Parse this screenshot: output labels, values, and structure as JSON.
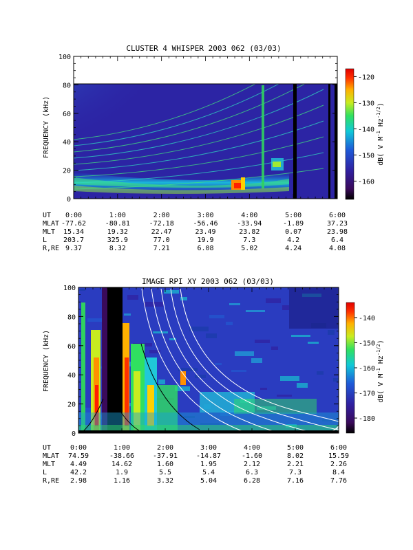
{
  "chart_data": [
    {
      "type": "heatmap",
      "title": "CLUSTER 4 WHISPER 2003 062 (03/03)",
      "ylabel": "FREQUENCY (kHz)",
      "ylim": [
        0,
        100
      ],
      "yticks": [
        "0",
        "20",
        "40",
        "60",
        "80",
        "100"
      ],
      "xlim": [
        "0:00",
        "6:00"
      ],
      "data_ymax": 80,
      "colorbar": {
        "label": "dB( V M",
        "label_sup1": "-1",
        "label_mid": " Hz",
        "label_sup2": "-1/2",
        "label_end": ")",
        "range": [
          -167,
          -117
        ],
        "ticks": [
          "-120",
          "-130",
          "-140",
          "-150",
          "-160"
        ]
      },
      "ephemeris": {
        "rows": [
          {
            "label": "UT",
            "values": [
              "0:00",
              "1:00",
              "2:00",
              "3:00",
              "4:00",
              "5:00",
              "6:00"
            ]
          },
          {
            "label": "MLAT",
            "values": [
              "-77.62",
              "-80.81",
              "-72.18",
              "-56.46",
              "-33.94",
              "-1.89",
              "37.23"
            ]
          },
          {
            "label": "MLT",
            "values": [
              "15.34",
              "19.32",
              "22.47",
              "23.49",
              "23.82",
              "0.07",
              "23.98"
            ]
          },
          {
            "label": "L",
            "values": [
              "203.7",
              "325.9",
              "77.0",
              "19.9",
              "7.3",
              "4.2",
              "6.4"
            ]
          },
          {
            "label": "R,RE",
            "values": [
              "9.37",
              "8.32",
              "7.21",
              "6.08",
              "5.02",
              "4.24",
              "4.08"
            ]
          }
        ]
      }
    },
    {
      "type": "heatmap",
      "title": "IMAGE RPI XY 2003 062 (03/03)",
      "ylabel": "FREQUENCY (kHz)",
      "ylim": [
        0,
        100
      ],
      "yticks": [
        "0",
        "20",
        "40",
        "60",
        "80",
        "100"
      ],
      "xlim": [
        "0:00",
        "6:00"
      ],
      "colorbar": {
        "label": "dB( V M",
        "label_sup1": "-1",
        "label_mid": " Hz",
        "label_sup2": "-1/2",
        "label_end": ")",
        "range": [
          -186,
          -134
        ],
        "ticks": [
          "-140",
          "-150",
          "-160",
          "-170",
          "-180"
        ]
      },
      "ephemeris": {
        "rows": [
          {
            "label": "UT",
            "values": [
              "0:00",
              "1:00",
              "2:00",
              "3:00",
              "4:00",
              "5:00",
              "6:00"
            ]
          },
          {
            "label": "MLAT",
            "values": [
              "74.59",
              "-38.66",
              "-37.91",
              "-14.87",
              "-1.60",
              "8.02",
              "15.59"
            ]
          },
          {
            "label": "MLT",
            "values": [
              "4.49",
              "14.62",
              "1.60",
              "1.95",
              "2.12",
              "2.21",
              "2.26"
            ]
          },
          {
            "label": "L",
            "values": [
              "42.2",
              "1.9",
              "5.5",
              "5.4",
              "6.3",
              "7.3",
              "8.4"
            ]
          },
          {
            "label": "R,RE",
            "values": [
              "2.98",
              "1.16",
              "3.32",
              "5.04",
              "6.28",
              "7.16",
              "7.76"
            ]
          }
        ]
      }
    }
  ]
}
